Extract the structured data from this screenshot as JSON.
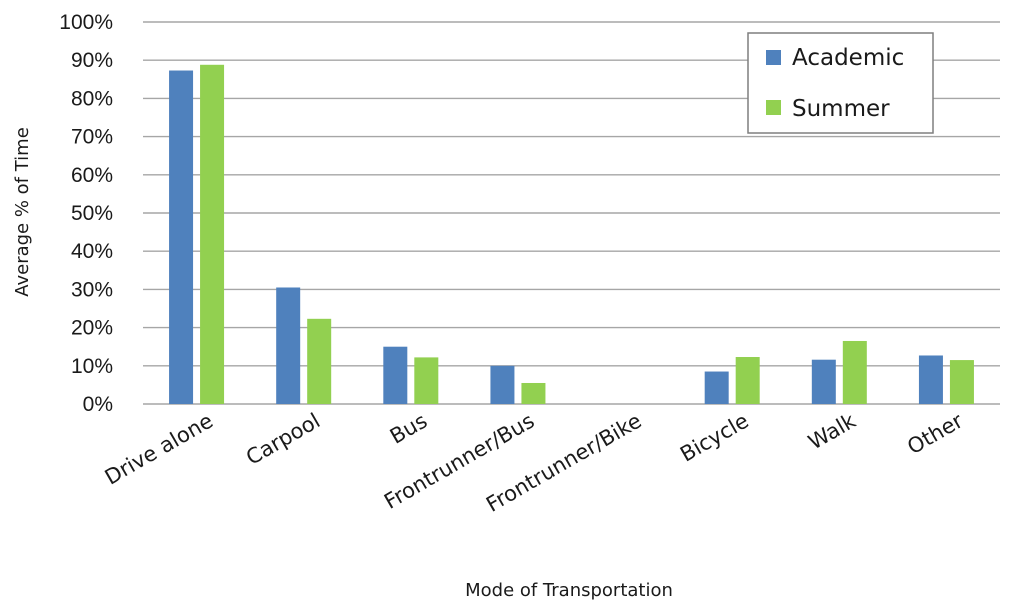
{
  "chart_data": {
    "type": "bar",
    "title": "",
    "xlabel": "Mode of Transportation",
    "ylabel": "Average % of Time",
    "ylim": [
      0,
      100
    ],
    "yticks": [
      "0%",
      "10%",
      "20%",
      "30%",
      "40%",
      "50%",
      "60%",
      "70%",
      "80%",
      "90%",
      "100%"
    ],
    "categories": [
      "Drive alone",
      "Carpool",
      "Bus",
      "Frontrunner/Bus",
      "Frontrunner/Bike",
      "Bicycle",
      "Walk",
      "Other"
    ],
    "series": [
      {
        "name": "Academic",
        "color": "#4f81bd",
        "values": [
          87.3,
          30.5,
          15.0,
          10.0,
          0,
          8.5,
          11.6,
          12.7
        ]
      },
      {
        "name": "Summer",
        "color": "#92d050",
        "values": [
          88.8,
          22.3,
          12.2,
          5.5,
          0,
          12.3,
          16.5,
          11.5
        ]
      }
    ],
    "grid": true,
    "legend_position": "top-right"
  }
}
